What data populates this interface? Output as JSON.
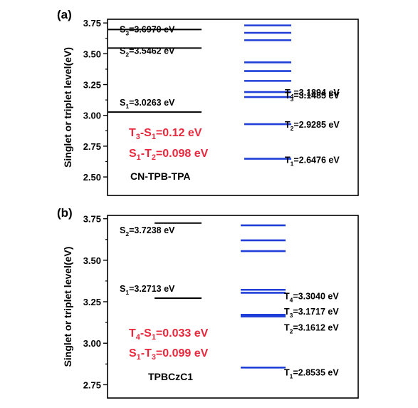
{
  "chart_data": [
    {
      "type": "energy-level-diagram",
      "panel_label": "(a)",
      "ylabel": "Singlet or triplet level(eV)",
      "ylim": [
        2.35,
        3.78
      ],
      "yticks": [
        2.5,
        2.75,
        3.0,
        3.25,
        3.5,
        3.75
      ],
      "ytick_labels": [
        "2.50",
        "2.75",
        "3.00",
        "3.25",
        "3.50",
        "3.75"
      ],
      "molecule": "CN-TPB-TPA",
      "singlet_color": "#000000",
      "triplet_color": "#1f3fd8",
      "gap_color": "#e8283c",
      "singlets": [
        {
          "name": "S3",
          "sym": "S",
          "sub": "3",
          "value": 3.697,
          "text": "=3.6970 eV"
        },
        {
          "name": "S2",
          "sym": "S",
          "sub": "2",
          "value": 3.5462,
          "text": "=3.5462 eV"
        },
        {
          "name": "S1",
          "sym": "S",
          "sub": "1",
          "value": 3.0263,
          "text": "=3.0263 eV"
        }
      ],
      "triplet_levels": [
        3.73,
        3.67,
        3.61,
        3.43,
        3.36,
        3.28,
        3.1894,
        3.1485,
        2.9285,
        2.6476
      ],
      "triplet_labels": [
        {
          "name": "T4",
          "sym": "T",
          "sub": "4",
          "value": 3.1894,
          "text": "=3.1894 eV"
        },
        {
          "name": "T3",
          "sym": "T",
          "sub": "3",
          "value": 3.1485,
          "text": "=3.1485 eV"
        },
        {
          "name": "T2",
          "sym": "T",
          "sub": "2",
          "value": 2.9285,
          "text": "=2.9285 eV"
        },
        {
          "name": "T1",
          "sym": "T",
          "sub": "1",
          "value": 2.6476,
          "text": "=2.6476 eV"
        }
      ],
      "gaps": [
        {
          "a": "T",
          "a_sub": "3",
          "b": "S",
          "b_sub": "1",
          "text": "=0.12 eV"
        },
        {
          "a": "S",
          "a_sub": "1",
          "b": "T",
          "b_sub": "2",
          "text": "=0.098 eV"
        }
      ]
    },
    {
      "type": "energy-level-diagram",
      "panel_label": "(b)",
      "ylabel": "Singlet or triplet level(eV)",
      "ylim": [
        2.67,
        3.77
      ],
      "yticks": [
        2.75,
        3.0,
        3.25,
        3.5,
        3.75
      ],
      "ytick_labels": [
        "2.75",
        "3.00",
        "3.25",
        "3.50",
        "3.75"
      ],
      "molecule": "TPBCzC1",
      "singlet_color": "#000000",
      "triplet_color": "#1f3fd8",
      "gap_color": "#e8283c",
      "singlets": [
        {
          "name": "S2",
          "sym": "S",
          "sub": "2",
          "value": 3.7238,
          "text": "=3.7238 eV"
        },
        {
          "name": "S1",
          "sym": "S",
          "sub": "1",
          "value": 3.2713,
          "text": "=3.2713 eV"
        }
      ],
      "triplet_levels": [
        3.71,
        3.62,
        3.555,
        3.322,
        3.304,
        3.1717,
        3.1612,
        2.8535
      ],
      "triplet_labels": [
        {
          "name": "T4",
          "sym": "T",
          "sub": "4",
          "value": 3.304,
          "text": "=3.3040 eV"
        },
        {
          "name": "T3",
          "sym": "T",
          "sub": "3",
          "value": 3.1717,
          "text": "=3.1717 eV"
        },
        {
          "name": "T2",
          "sym": "T",
          "sub": "2",
          "value": 3.1612,
          "text": "=3.1612 eV"
        },
        {
          "name": "T1",
          "sym": "T",
          "sub": "1",
          "value": 2.8535,
          "text": "=2.8535 eV"
        }
      ],
      "gaps": [
        {
          "a": "T",
          "a_sub": "4",
          "b": "S",
          "b_sub": "1",
          "text": "=0.033 eV"
        },
        {
          "a": "S",
          "a_sub": "1",
          "b": "T",
          "b_sub": "3",
          "text": "=0.099 eV"
        }
      ]
    }
  ]
}
